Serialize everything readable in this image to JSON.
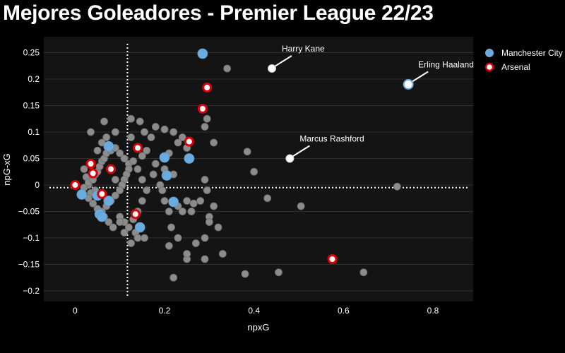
{
  "title": "Mejores Goleadores - Premier League 22/23",
  "chart_data": {
    "type": "scatter",
    "title": "Mejores Goleadores - Premier League 22/23",
    "xlabel": "npxG",
    "ylabel": "npG-xG",
    "xlim": [
      -0.07,
      0.89
    ],
    "ylim": [
      -0.22,
      0.28
    ],
    "xticks": [
      0,
      0.2,
      0.4,
      0.6,
      0.8
    ],
    "yticks": [
      -0.2,
      -0.15,
      -0.1,
      -0.05,
      0,
      0.05,
      0.1,
      0.15,
      0.2,
      0.25
    ],
    "grid": true,
    "legend_position": "right",
    "reference_lines": {
      "x": 0.117,
      "y": -0.005
    },
    "colors": {
      "background": "#000000",
      "plot_background": "#141414",
      "grid": "#2e2e2e",
      "other": "#8c8c8c",
      "manchester_city": "#6cabdd",
      "arsenal_fill": "#ffffff",
      "arsenal_edge": "#db0007",
      "annotated_fill": "#ffffff"
    },
    "series": [
      {
        "name": "",
        "points": [
          [
            0.02,
            0.03
          ],
          [
            0.025,
            0.015
          ],
          [
            0.03,
            0.0
          ],
          [
            0.035,
            -0.015
          ],
          [
            0.02,
            -0.005
          ],
          [
            0.03,
            0.005
          ],
          [
            0.04,
            0.01
          ],
          [
            0.045,
            0.02
          ],
          [
            0.05,
            0.025
          ],
          [
            0.055,
            0.035
          ],
          [
            0.06,
            0.045
          ],
          [
            0.065,
            0.05
          ],
          [
            0.07,
            0.06
          ],
          [
            0.08,
            0.065
          ],
          [
            0.09,
            0.07
          ],
          [
            0.1,
            0.06
          ],
          [
            0.11,
            0.05
          ],
          [
            0.12,
            0.04
          ],
          [
            0.05,
            0.065
          ],
          [
            0.06,
            0.08
          ],
          [
            0.07,
            0.09
          ],
          [
            0.065,
            0.12
          ],
          [
            0.035,
            0.1
          ],
          [
            0.09,
            0.1
          ],
          [
            0.125,
            0.09
          ],
          [
            0.12,
            0.03
          ],
          [
            0.115,
            0.02
          ],
          [
            0.11,
            0.01
          ],
          [
            0.105,
            0.0
          ],
          [
            0.1,
            -0.01
          ],
          [
            0.09,
            -0.02
          ],
          [
            0.08,
            -0.03
          ],
          [
            0.07,
            -0.04
          ],
          [
            0.06,
            -0.05
          ],
          [
            0.05,
            -0.045
          ],
          [
            0.04,
            -0.035
          ],
          [
            0.03,
            -0.025
          ],
          [
            0.045,
            -0.01
          ],
          [
            0.055,
            -0.02
          ],
          [
            0.065,
            -0.06
          ],
          [
            0.075,
            -0.07
          ],
          [
            0.085,
            -0.08
          ],
          [
            0.1,
            -0.06
          ],
          [
            0.11,
            -0.07
          ],
          [
            0.12,
            -0.08
          ],
          [
            0.135,
            -0.09
          ],
          [
            0.14,
            -0.1
          ],
          [
            0.125,
            -0.11
          ],
          [
            0.155,
            -0.1
          ],
          [
            0.13,
            -0.065
          ],
          [
            0.14,
            -0.05
          ],
          [
            0.15,
            -0.03
          ],
          [
            0.16,
            -0.01
          ],
          [
            0.15,
            0.01
          ],
          [
            0.14,
            0.03
          ],
          [
            0.13,
            0.045
          ],
          [
            0.15,
            0.055
          ],
          [
            0.16,
            0.065
          ],
          [
            0.17,
            0.09
          ],
          [
            0.18,
            0.11
          ],
          [
            0.155,
            0.1
          ],
          [
            0.145,
            0.12
          ],
          [
            0.125,
            0.125
          ],
          [
            0.18,
            0.04
          ],
          [
            0.175,
            0.02
          ],
          [
            0.19,
            0.0
          ],
          [
            0.2,
            0.03
          ],
          [
            0.21,
            0.06
          ],
          [
            0.22,
            0.1
          ],
          [
            0.2,
            0.105
          ],
          [
            0.23,
            0.08
          ],
          [
            0.24,
            0.09
          ],
          [
            0.25,
            0.07
          ],
          [
            0.22,
            0.02
          ],
          [
            0.195,
            -0.01
          ],
          [
            0.2,
            -0.03
          ],
          [
            0.21,
            -0.05
          ],
          [
            0.23,
            -0.04
          ],
          [
            0.24,
            -0.05
          ],
          [
            0.25,
            -0.03
          ],
          [
            0.26,
            -0.05
          ],
          [
            0.265,
            -0.035
          ],
          [
            0.28,
            -0.03
          ],
          [
            0.295,
            -0.01
          ],
          [
            0.3,
            -0.06
          ],
          [
            0.31,
            -0.04
          ],
          [
            0.29,
            -0.1
          ],
          [
            0.3,
            -0.07
          ],
          [
            0.32,
            -0.08
          ],
          [
            0.33,
            -0.13
          ],
          [
            0.29,
            -0.14
          ],
          [
            0.25,
            -0.14
          ],
          [
            0.22,
            -0.175
          ],
          [
            0.21,
            -0.115
          ],
          [
            0.215,
            -0.08
          ],
          [
            0.23,
            -0.1
          ],
          [
            0.25,
            -0.13
          ],
          [
            0.27,
            -0.11
          ],
          [
            0.29,
            0.01
          ],
          [
            0.29,
            0.11
          ],
          [
            0.31,
            0.08
          ],
          [
            0.295,
            0.125
          ],
          [
            0.34,
            0.22
          ],
          [
            0.4,
            0.025
          ],
          [
            0.385,
            0.063
          ],
          [
            0.43,
            -0.025
          ],
          [
            0.505,
            -0.04
          ],
          [
            0.455,
            -0.165
          ],
          [
            0.38,
            -0.168
          ],
          [
            0.645,
            -0.165
          ],
          [
            0.72,
            -0.003
          ],
          [
            0.1,
            -0.07
          ],
          [
            0.09,
            0.01
          ],
          [
            0.11,
            -0.09
          ]
        ]
      },
      {
        "name": "Manchester City",
        "points": [
          [
            0.285,
            0.248
          ],
          [
            0.075,
            0.073
          ],
          [
            0.2,
            0.052
          ],
          [
            0.255,
            0.05
          ],
          [
            0.205,
            0.018
          ],
          [
            0.015,
            -0.018
          ],
          [
            0.05,
            -0.02
          ],
          [
            0.075,
            -0.03
          ],
          [
            0.055,
            -0.055
          ],
          [
            0.06,
            -0.06
          ],
          [
            0.22,
            -0.032
          ],
          [
            0.145,
            -0.08
          ]
        ]
      },
      {
        "name": "Arsenal",
        "points": [
          [
            0.295,
            0.184
          ],
          [
            0.285,
            0.144
          ],
          [
            0.255,
            0.082
          ],
          [
            0.14,
            0.07
          ],
          [
            0.035,
            0.04
          ],
          [
            0.08,
            0.03
          ],
          [
            0.04,
            0.022
          ],
          [
            0.0,
            0.0
          ],
          [
            0.06,
            -0.017
          ],
          [
            0.135,
            -0.055
          ],
          [
            0.575,
            -0.14
          ]
        ]
      }
    ],
    "annotations": [
      {
        "label": "Harry Kane",
        "x": 0.44,
        "y": 0.22
      },
      {
        "label": "Erling Haaland",
        "x": 0.745,
        "y": 0.19
      },
      {
        "label": "Marcus Rashford",
        "x": 0.48,
        "y": 0.05
      }
    ]
  }
}
